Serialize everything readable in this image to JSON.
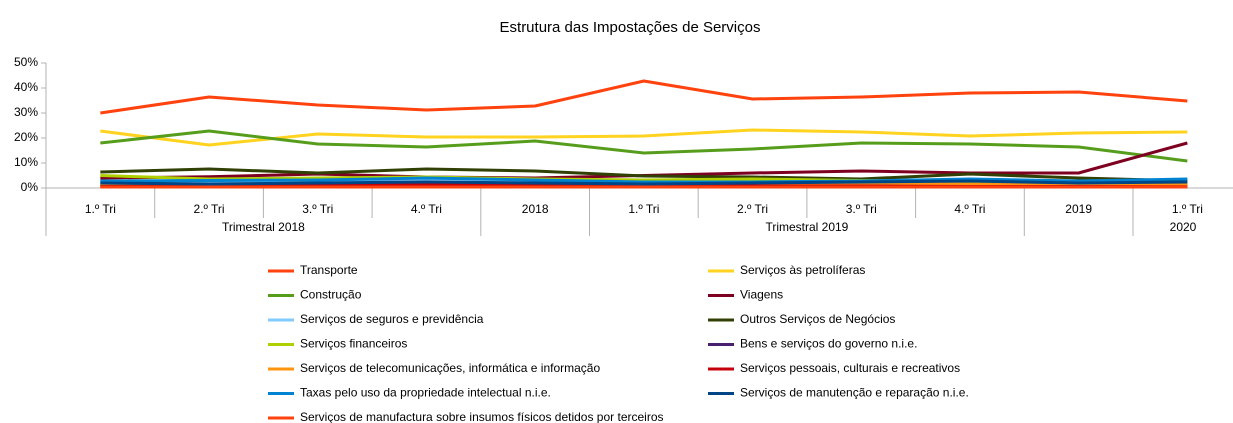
{
  "chart_data": {
    "type": "line",
    "title": "Estrutura das Impostações de Serviços",
    "categories": [
      "1.º Tri",
      "2.º Tri",
      "3.º Tri",
      "4.º Tri",
      "2018",
      "1.º Tri",
      "2.º Tri",
      "3.º Tri",
      "4.º Tri",
      "2019",
      "1.º Tri"
    ],
    "groups": [
      {
        "label": "Trimestral 2018",
        "count": 4
      },
      {
        "label": null,
        "count": 1
      },
      {
        "label": "Trimestral 2019",
        "count": 4
      },
      {
        "label": null,
        "count": 1
      },
      {
        "label": "2020",
        "count": 1
      }
    ],
    "ylim": [
      0,
      50
    ],
    "yticks": [
      {
        "value": 0,
        "label": "0%"
      },
      {
        "value": 10,
        "label": "10%"
      },
      {
        "value": 20,
        "label": "20%"
      },
      {
        "value": 30,
        "label": "30%"
      },
      {
        "value": 40,
        "label": "40%"
      },
      {
        "value": 50,
        "label": "50%"
      }
    ],
    "grid": false,
    "series": [
      {
        "name": "Transporte",
        "color": "#ff420e",
        "values": [
          30,
          36.4,
          33.2,
          31.2,
          32.8,
          42.8,
          35.6,
          36.4,
          38,
          38.4,
          34.8
        ]
      },
      {
        "name": "Serviços às petrolíferas",
        "color": "#ffd320",
        "values": [
          22.8,
          17.2,
          21.6,
          20.4,
          20.4,
          20.8,
          23.2,
          22.4,
          20.8,
          22,
          22.4
        ]
      },
      {
        "name": "Construção",
        "color": "#579d1c",
        "values": [
          18,
          22.8,
          17.6,
          16.4,
          18.8,
          14,
          15.6,
          18,
          17.6,
          16.4,
          10.8
        ]
      },
      {
        "name": "Viagens",
        "color": "#7e0021",
        "values": [
          4,
          4.5,
          5.6,
          4.4,
          4,
          5,
          6,
          6.8,
          6,
          6,
          18
        ]
      },
      {
        "name": "Serviços de seguros e previdência",
        "color": "#83caff",
        "values": [
          2,
          2.5,
          3,
          3.5,
          3,
          2.5,
          3,
          3.5,
          3,
          2.5,
          2
        ]
      },
      {
        "name": "Outros Serviços de Negócios",
        "color": "#314004",
        "values": [
          6.4,
          7.6,
          6,
          7.6,
          6.8,
          4.8,
          4.4,
          3.6,
          5.6,
          4,
          2.8
        ]
      },
      {
        "name": "Serviços financeiros",
        "color": "#aecf00",
        "values": [
          5,
          3.6,
          4,
          4.4,
          3.6,
          3.2,
          3.6,
          3,
          2.4,
          2.8,
          2
        ]
      },
      {
        "name": "Bens e serviços do governo n.i.e.",
        "color": "#4b1f6f",
        "values": [
          1,
          1,
          1.2,
          1,
          1,
          1,
          1,
          1.2,
          1,
          1,
          1
        ]
      },
      {
        "name": "Serviços de telecomunicações, informática e informação",
        "color": "#ff950e",
        "values": [
          1.5,
          1.5,
          2,
          2,
          1.8,
          1.5,
          1.5,
          2,
          1.5,
          1.5,
          1.2
        ]
      },
      {
        "name": "Serviços pessoais, culturais e recreativos",
        "color": "#c5000b",
        "values": [
          0.6,
          0.8,
          1,
          1.5,
          1,
          0.8,
          0.8,
          0.8,
          0.6,
          0.6,
          0.5
        ]
      },
      {
        "name": "Taxas pelo uso da propriedade intelectual n.i.e.",
        "color": "#0084d1",
        "values": [
          2.8,
          3,
          3.2,
          4,
          3.2,
          2.4,
          2.4,
          2.8,
          3.6,
          2.8,
          3.6
        ]
      },
      {
        "name": "Serviços de manutenção e reparação n.i.e.",
        "color": "#004586",
        "values": [
          2,
          1.6,
          2,
          2.4,
          2,
          1.6,
          2,
          2.4,
          2.8,
          2,
          2.4
        ]
      },
      {
        "name": "Serviços de manufactura sobre insumos físicos detidos por terceiros",
        "color": "#ff420e",
        "values": [
          0.4,
          0.4,
          0.4,
          0.4,
          0.4,
          0.4,
          0.4,
          0.4,
          0.4,
          0.4,
          0.4
        ]
      }
    ]
  }
}
